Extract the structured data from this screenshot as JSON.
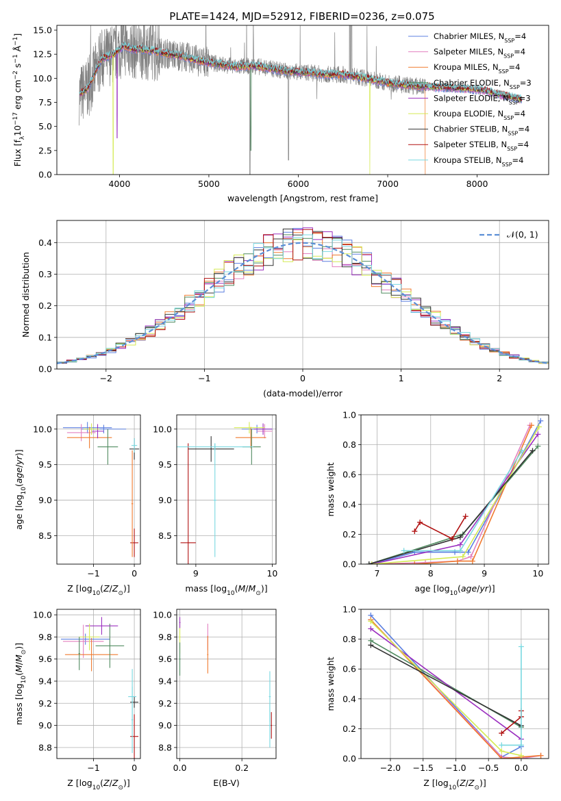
{
  "figure_title": "PLATE=1424, MJD=52912, FIBERID=0236, z=0.075",
  "model_colors": [
    "#5b7fe0",
    "#e27fbf",
    "#f07a2e",
    "#4f8a5f",
    "#9b2fbf",
    "#d4ea52",
    "#333333",
    "#b01010",
    "#78d8e0"
  ],
  "model_names": [
    {
      "prefix": "Chabrier MILES, N",
      "sub": "SSP",
      "suffix": "=4"
    },
    {
      "prefix": "Salpeter MILES, N",
      "sub": "SSP",
      "suffix": "=4"
    },
    {
      "prefix": "Kroupa MILES, N",
      "sub": "SSP",
      "suffix": "=4"
    },
    {
      "prefix": "Chabrier ELODIE, N",
      "sub": "SSP",
      "suffix": "=3"
    },
    {
      "prefix": "Salpeter ELODIE, N",
      "sub": "SSP",
      "suffix": "=3"
    },
    {
      "prefix": "Kroupa ELODIE, N",
      "sub": "SSP",
      "suffix": "=4"
    },
    {
      "prefix": "Chabrier STELIB, N",
      "sub": "SSP",
      "suffix": "=4"
    },
    {
      "prefix": "Salpeter STELIB, N",
      "sub": "SSP",
      "suffix": "=4"
    },
    {
      "prefix": "Kroupa STELIB, N",
      "sub": "SSP",
      "suffix": "=4"
    }
  ],
  "chart_data": [
    {
      "id": "spectrum",
      "type": "line",
      "xlabel": "wavelength [Angstrom, rest frame]",
      "ylabel": "Flux [f_λ10^-17 erg cm^-2 s^-1 Å^-1]",
      "xlim": [
        3300,
        8800
      ],
      "ylim": [
        0,
        15.5
      ],
      "xticks": [
        4000,
        5000,
        6000,
        7000,
        8000
      ],
      "yticks": [
        0,
        2.5,
        5.0,
        7.5,
        10.0,
        12.5,
        15.0
      ],
      "legend_position": "upper right",
      "grid": false,
      "data_continuum": {
        "x": [
          3550,
          3650,
          3800,
          3950,
          4050,
          4150,
          4300,
          4500,
          4700,
          4900,
          5100,
          5300,
          5500,
          5700,
          5900,
          6100,
          6300,
          6500,
          6700,
          6900,
          7100,
          7300,
          7500,
          7700,
          7900,
          8100,
          8300,
          8500
        ],
        "y": [
          8.3,
          9.0,
          12.0,
          12.6,
          13.4,
          13.0,
          13.0,
          12.6,
          12.3,
          11.8,
          11.5,
          11.2,
          11.3,
          11.0,
          10.7,
          10.6,
          10.4,
          10.4,
          10.1,
          9.7,
          9.4,
          9.2,
          9.1,
          9.0,
          8.9,
          8.7,
          8.2,
          7.8
        ]
      },
      "model_dips": [
        {
          "model": 5,
          "x": 3930,
          "y": 0.0
        },
        {
          "model": 5,
          "x": 6800,
          "y": 0.0
        },
        {
          "model": 4,
          "x": 3975,
          "y": 3.8
        },
        {
          "model": 3,
          "x": 5470,
          "y": 2.5
        },
        {
          "model": 2,
          "x": 7420,
          "y": 0.0
        }
      ],
      "spectrum_color": "#808080"
    },
    {
      "id": "residuals",
      "type": "histogram",
      "xlabel": "(data-model)/error",
      "ylabel": "Normed distribution",
      "xlim": [
        -2.5,
        2.5
      ],
      "ylim": [
        0,
        0.47
      ],
      "xticks": [
        -2,
        -1,
        0,
        1,
        2
      ],
      "yticks": [
        0.0,
        0.1,
        0.2,
        0.3,
        0.4
      ],
      "grid": true,
      "legend_label": "𝒩(0, 1)",
      "legend_position": "upper right",
      "gaussian": {
        "mu": 0,
        "sigma": 1,
        "color": "#5b8ed6"
      },
      "bin_edges_start": -2.5,
      "bin_width": 0.1,
      "bin_count": 50
    },
    {
      "id": "age_vs_Z",
      "type": "errorbar",
      "xlabel": "Z [log10(Z/Z☉)]",
      "ylabel": "age [log10(age/yr)]",
      "xlim": [
        -1.9,
        0.15
      ],
      "ylim": [
        8.1,
        10.2
      ],
      "xticks": [
        -1,
        0
      ],
      "yticks": [
        8.5,
        9.0,
        9.5,
        10.0
      ],
      "grid": true,
      "points": [
        {
          "model": 0,
          "x": -1.15,
          "y": 10.02,
          "xerr": 0.6,
          "yerr": 0.08
        },
        {
          "model": 0,
          "x": -0.75,
          "y": 10.0,
          "xerr": 0.55,
          "yerr": 0.06
        },
        {
          "model": 1,
          "x": -1.3,
          "y": 9.95,
          "xerr": 0.35,
          "yerr": 0.12
        },
        {
          "model": 2,
          "x": -1.1,
          "y": 9.88,
          "xerr": 0.55,
          "yerr": 0.15
        },
        {
          "model": 3,
          "x": -0.65,
          "y": 9.75,
          "xerr": 0.25,
          "yerr": 0.25
        },
        {
          "model": 4,
          "x": -0.9,
          "y": 9.97,
          "xerr": 0.15,
          "yerr": 0.1
        },
        {
          "model": 5,
          "x": -1.05,
          "y": 10.0,
          "xerr": 0.2,
          "yerr": 0.08
        },
        {
          "model": 6,
          "x": 0.0,
          "y": 9.72,
          "xerr": 0.12,
          "yerr": 0.15
        },
        {
          "model": 7,
          "x": 0.0,
          "y": 8.4,
          "xerr": 0.1,
          "yerr": 0.2
        },
        {
          "model": 8,
          "x": 0.0,
          "y": 9.77,
          "xerr": 0.07,
          "yerr": 0.1
        },
        {
          "model": 2,
          "x": -0.05,
          "y": 8.95,
          "xerr": 0.02,
          "yerr": 0.75
        }
      ]
    },
    {
      "id": "age_vs_mass",
      "type": "errorbar",
      "xlabel": "mass [log10(M/M☉)]",
      "ylabel": "",
      "xlim": [
        8.75,
        10.05
      ],
      "ylim": [
        8.1,
        10.2
      ],
      "xticks": [
        9,
        10
      ],
      "yticks": [
        8.5,
        9.0,
        9.5,
        10.0
      ],
      "grid": true,
      "points": [
        {
          "model": 0,
          "x": 9.8,
          "y": 10.0,
          "xerr": 0.2,
          "yerr": 0.06
        },
        {
          "model": 1,
          "x": 9.9,
          "y": 9.97,
          "xerr": 0.1,
          "yerr": 0.1
        },
        {
          "model": 2,
          "x": 9.72,
          "y": 9.88,
          "xerr": 0.2,
          "yerr": 0.15
        },
        {
          "model": 3,
          "x": 9.73,
          "y": 9.75,
          "xerr": 0.12,
          "yerr": 0.25
        },
        {
          "model": 4,
          "x": 9.88,
          "y": 10.0,
          "xerr": 0.12,
          "yerr": 0.08
        },
        {
          "model": 5,
          "x": 9.7,
          "y": 10.02,
          "xerr": 0.2,
          "yerr": 0.08
        },
        {
          "model": 6,
          "x": 9.2,
          "y": 9.72,
          "xerr": 0.3,
          "yerr": 0.18
        },
        {
          "model": 7,
          "x": 8.9,
          "y": 8.4,
          "xerr": 0.1,
          "yerr": 1.4
        },
        {
          "model": 8,
          "x": 9.25,
          "y": 9.75,
          "xerr": 0.5,
          "yerr": 0.05
        },
        {
          "model": 8,
          "x": 9.25,
          "y": 9.0,
          "xerr": 0.02,
          "yerr": 0.8
        }
      ]
    },
    {
      "id": "massweight_vs_age",
      "type": "line",
      "xlabel": "age  [log10(age/yr)]",
      "ylabel": "mass weight",
      "xlim": [
        6.7,
        10.2
      ],
      "ylim": [
        0,
        1.0
      ],
      "xticks": [
        7,
        8,
        9,
        10
      ],
      "yticks": [
        0.0,
        0.2,
        0.4,
        0.6,
        0.8,
        1.0
      ],
      "grid": true,
      "series": [
        {
          "model": 0,
          "x": [
            6.9,
            7.7,
            8.45,
            8.7,
            10.05
          ],
          "y": [
            0.0,
            0.08,
            0.08,
            0.08,
            0.96
          ]
        },
        {
          "model": 1,
          "x": [
            6.9,
            7.9,
            8.5,
            8.75,
            9.85
          ],
          "y": [
            0.0,
            0.01,
            0.02,
            0.05,
            0.93
          ]
        },
        {
          "model": 2,
          "x": [
            6.9,
            7.7,
            8.5,
            8.78,
            9.88
          ],
          "y": [
            0.0,
            0.0,
            0.02,
            0.02,
            0.93
          ]
        },
        {
          "model": 3,
          "x": [
            6.85,
            8.6,
            10.0
          ],
          "y": [
            0.0,
            0.2,
            0.79
          ]
        },
        {
          "model": 4,
          "x": [
            6.9,
            8.55,
            10.0
          ],
          "y": [
            0.0,
            0.13,
            0.87
          ]
        },
        {
          "model": 5,
          "x": [
            6.9,
            8.6,
            10.02
          ],
          "y": [
            0.0,
            0.05,
            0.92
          ]
        },
        {
          "model": 6,
          "x": [
            6.85,
            8.55,
            9.9
          ],
          "y": [
            0.0,
            0.18,
            0.76
          ]
        },
        {
          "model": 7,
          "x": [
            7.7,
            7.8,
            8.4,
            8.65
          ],
          "y": [
            0.22,
            0.28,
            0.17,
            0.32
          ]
        },
        {
          "model": 8,
          "x": [
            7.5,
            8.55,
            9.7
          ],
          "y": [
            0.09,
            0.09,
            0.76
          ]
        }
      ]
    },
    {
      "id": "mass_vs_Z",
      "type": "errorbar",
      "xlabel": "Z [log10(Z/Z☉)]",
      "ylabel": "mass [log10(M/M☉)]",
      "xlim": [
        -1.9,
        0.15
      ],
      "ylim": [
        8.7,
        10.05
      ],
      "xticks": [
        -1,
        0
      ],
      "yticks": [
        8.8,
        9.0,
        9.2,
        9.4,
        9.6,
        9.8,
        10.0
      ],
      "grid": true,
      "points": [
        {
          "model": 0,
          "x": -1.2,
          "y": 9.78,
          "xerr": 0.6,
          "yerr": 0.05
        },
        {
          "model": 1,
          "x": -1.25,
          "y": 9.76,
          "xerr": 0.5,
          "yerr": 0.15
        },
        {
          "model": 2,
          "x": -1.05,
          "y": 9.64,
          "xerr": 0.65,
          "yerr": 0.15
        },
        {
          "model": 3,
          "x": -0.6,
          "y": 9.72,
          "xerr": 0.35,
          "yerr": 0.2
        },
        {
          "model": 4,
          "x": -0.8,
          "y": 9.9,
          "xerr": 0.4,
          "yerr": 0.08
        },
        {
          "model": 5,
          "x": -1.1,
          "y": 9.8,
          "xerr": 0.25,
          "yerr": 0.12
        },
        {
          "model": 6,
          "x": 0.0,
          "y": 9.21,
          "xerr": 0.1,
          "yerr": 0.05
        },
        {
          "model": 7,
          "x": 0.0,
          "y": 8.9,
          "xerr": 0.1,
          "yerr": 0.2
        },
        {
          "model": 8,
          "x": -0.05,
          "y": 9.26,
          "xerr": 0.1,
          "yerr": 0.25
        },
        {
          "model": 8,
          "x": -0.05,
          "y": 9.05,
          "xerr": 0.02,
          "yerr": 0.3
        },
        {
          "model": 3,
          "x": -1.35,
          "y": 9.65,
          "xerr": 0.02,
          "yerr": 0.15
        }
      ]
    },
    {
      "id": "mass_vs_EBV",
      "type": "errorbar",
      "xlabel": "E(B-V)",
      "ylabel": "",
      "xlim": [
        -0.01,
        0.31
      ],
      "ylim": [
        8.7,
        10.05
      ],
      "xticks": [
        0.0,
        0.2
      ],
      "yticks": [
        8.8,
        9.0,
        9.2,
        9.4,
        9.6,
        9.8,
        10.0
      ],
      "grid": true,
      "points": [
        {
          "model": 5,
          "x": 0.0,
          "y": 9.8,
          "xerr": 0.002,
          "yerr": 0.15
        },
        {
          "model": 3,
          "x": 0.0,
          "y": 9.6,
          "xerr": 0.002,
          "yerr": 0.15
        },
        {
          "model": 4,
          "x": 0.0,
          "y": 9.93,
          "xerr": 0.002,
          "yerr": 0.05
        },
        {
          "model": 1,
          "x": 0.09,
          "y": 9.8,
          "xerr": 0.002,
          "yerr": 0.12
        },
        {
          "model": 2,
          "x": 0.09,
          "y": 9.64,
          "xerr": 0.002,
          "yerr": 0.17
        },
        {
          "model": 8,
          "x": 0.29,
          "y": 9.26,
          "xerr": 0.003,
          "yerr": 0.23
        },
        {
          "model": 8,
          "x": 0.29,
          "y": 9.0,
          "xerr": 0.003,
          "yerr": 0.2
        },
        {
          "model": 7,
          "x": 0.295,
          "y": 9.0,
          "xerr": 0.002,
          "yerr": 0.12
        }
      ]
    },
    {
      "id": "massweight_vs_Z",
      "type": "line",
      "xlabel": "Z [log10(Z/Z☉)]",
      "ylabel": "mass weight",
      "xlim": [
        -2.45,
        0.42
      ],
      "ylim": [
        0,
        1.0
      ],
      "xticks": [
        -2.0,
        -1.5,
        -1.0,
        -0.5,
        0.0
      ],
      "yticks": [
        0.0,
        0.2,
        0.4,
        0.6,
        0.8,
        1.0
      ],
      "grid": true,
      "series": [
        {
          "model": 0,
          "x": [
            -2.3,
            -0.3,
            0.0
          ],
          "y": [
            0.96,
            0.01,
            0.08
          ]
        },
        {
          "model": 1,
          "x": [
            -2.3,
            -0.3,
            0.0,
            0.3
          ],
          "y": [
            0.93,
            0.01,
            0.0,
            0.02
          ]
        },
        {
          "model": 2,
          "x": [
            -2.3,
            -0.3,
            0.0,
            0.3
          ],
          "y": [
            0.93,
            0.0,
            0.01,
            0.02
          ]
        },
        {
          "model": 3,
          "x": [
            -2.3,
            0.0
          ],
          "y": [
            0.79,
            0.21
          ]
        },
        {
          "model": 4,
          "x": [
            -2.3,
            0.0
          ],
          "y": [
            0.87,
            0.13
          ]
        },
        {
          "model": 5,
          "x": [
            -2.3,
            -0.3,
            0.0
          ],
          "y": [
            0.92,
            0.05,
            0.02
          ]
        },
        {
          "model": 6,
          "x": [
            -2.3,
            0.0
          ],
          "y": [
            0.76,
            0.22
          ]
        },
        {
          "model": 7,
          "x": [
            -0.3,
            0.0,
            0.0
          ],
          "y": [
            0.17,
            0.28,
            0.32
          ]
        },
        {
          "model": 8,
          "x": [
            0.0,
            0.0,
            -0.3
          ],
          "y": [
            0.75,
            0.09,
            0.09
          ]
        }
      ]
    }
  ]
}
